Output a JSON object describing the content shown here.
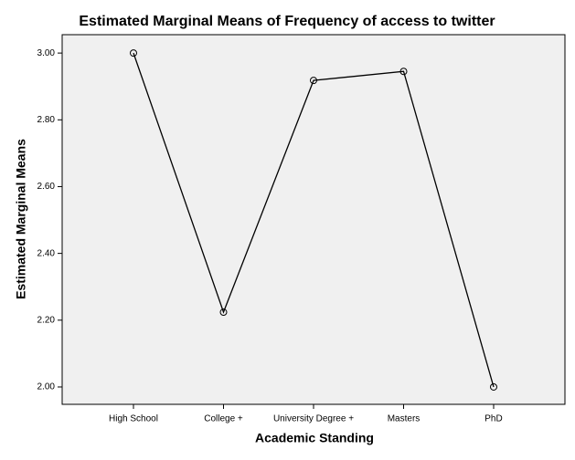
{
  "chart_data": {
    "type": "line",
    "title": "Estimated Marginal Means of Frequency of access to twitter",
    "x_label": "Academic Standing",
    "y_label": "Estimated Marginal Means",
    "categories": [
      "High School",
      "College +",
      "University Degree +",
      "Masters",
      "PhD"
    ],
    "values": [
      3.0,
      2.224,
      2.918,
      2.945,
      2.0
    ],
    "color": "#000000",
    "ylim": [
      1.948,
      3.055
    ],
    "yticks": [
      {
        "value": 2.0,
        "label": "2.00"
      },
      {
        "value": 2.2,
        "label": "2.20"
      },
      {
        "value": 2.4,
        "label": "2.40"
      },
      {
        "value": 2.6,
        "label": "2.60"
      },
      {
        "value": 2.8,
        "label": "2.80"
      },
      {
        "value": 3.0,
        "label": "3.00"
      }
    ]
  }
}
